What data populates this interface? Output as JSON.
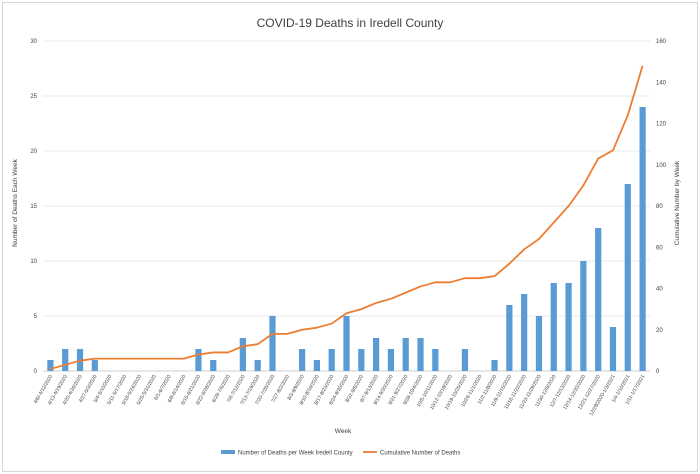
{
  "chart_data": {
    "type": "bar+line",
    "title": "COVID-19 Deaths in Iredell County",
    "xlabel": "Week",
    "ylabel": "Number of Deaths Each Week",
    "y2label": "Cumulative Number by Week",
    "ylim": [
      0,
      30
    ],
    "y2lim": [
      0,
      160
    ],
    "yticks": [
      0,
      5,
      10,
      15,
      20,
      25,
      30
    ],
    "y2ticks": [
      0,
      20,
      40,
      60,
      80,
      100,
      120,
      140,
      160
    ],
    "grid": true,
    "legend_position": "bottom",
    "categories": [
      "4/6/-4/12/2020",
      "4/13-4/19/2020",
      "4/20-4/26/2020",
      "4/27-5/3/2020",
      "5/4-5/10/2020",
      "5/11-5/17/2020",
      "5/18-5/24/2020",
      "5/25-5/31/2020",
      "6/1-6/7/2020",
      "6/8-6/14/2020",
      "6/15-6/21/2020",
      "6/22-6/28/2020",
      "6/29-7/5/2020",
      "7/6-7/12/2020",
      "7/13-7/19/2020",
      "7/20-7/26/2020",
      "7/27-8/2/2020",
      "8/3-8/9/2020",
      "8/10-8/16/2020",
      "8/17-8/23/2020",
      "8/24-8/30/2020",
      "8/31-9/6/2020",
      "9/7-9/13/2020",
      "9/14-9/20/2020",
      "9/21-9/27/2020",
      "9/28-10/4/2020",
      "10/5-10/11/2020",
      "10/12-10/18/2020",
      "10/19-10/25/2020",
      "10/26-11/1/2020",
      "11/2-11/8/2020",
      "11/9-11/15/2020",
      "11/16-11/22/2020",
      "11/23-11/29/2020",
      "11/30-12/6/2020",
      "12/7-12/13/2020",
      "12/14-12/20/2020",
      "12/21-12/27/2020",
      "12/28/2020-1/3/2021",
      "1/4-1/10/2021",
      "1/11-1/17/2021"
    ],
    "series": [
      {
        "name": "Number of Deaths per Week Iredell County",
        "type": "bar",
        "color": "#5b9bd5",
        "values": [
          1,
          2,
          2,
          1,
          0,
          0,
          0,
          0,
          0,
          0,
          2,
          1,
          0,
          3,
          1,
          5,
          0,
          2,
          1,
          2,
          5,
          2,
          3,
          2,
          3,
          3,
          2,
          0,
          2,
          0,
          1,
          6,
          7,
          5,
          8,
          8,
          10,
          13,
          4,
          17,
          24
        ]
      },
      {
        "name": "Cumulative Number of Deaths",
        "type": "line",
        "axis": "secondary",
        "color": "#ed7d31",
        "values": [
          1,
          3,
          5,
          6,
          6,
          6,
          6,
          6,
          6,
          6,
          8,
          9,
          9,
          12,
          13,
          18,
          18,
          20,
          21,
          23,
          28,
          30,
          33,
          35,
          38,
          41,
          43,
          43,
          45,
          45,
          46,
          52,
          59,
          64,
          72,
          80,
          90,
          103,
          107,
          124,
          148
        ]
      }
    ]
  }
}
